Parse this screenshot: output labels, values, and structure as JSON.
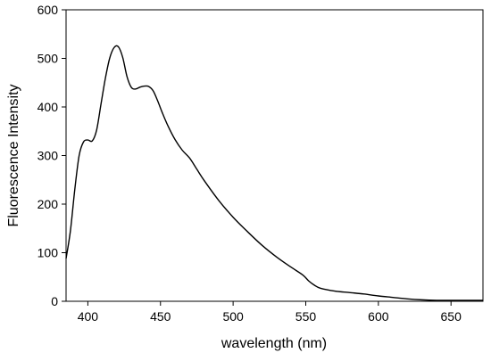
{
  "chart_data": {
    "type": "line",
    "title": "",
    "xlabel": "wavelength (nm)",
    "ylabel": "Fluorescence Intensity",
    "xlim": [
      385,
      672
    ],
    "ylim": [
      0,
      600
    ],
    "x_ticks": [
      400,
      450,
      500,
      550,
      600,
      650
    ],
    "y_ticks": [
      0,
      100,
      200,
      300,
      400,
      500,
      600
    ],
    "grid": false,
    "legend": "none",
    "series": [
      {
        "x": [
          385,
          388,
          391,
          394,
          397,
          400,
          403,
          406,
          409,
          412,
          415,
          418,
          421,
          424,
          427,
          430,
          433,
          436,
          439,
          442,
          445,
          448,
          451,
          455,
          460,
          465,
          470,
          475,
          480,
          490,
          500,
          510,
          520,
          530,
          540,
          548,
          552,
          556,
          560,
          570,
          580,
          590,
          600,
          610,
          620,
          630,
          640,
          650,
          660,
          672
        ],
        "values": [
          88,
          145,
          230,
          300,
          328,
          332,
          330,
          352,
          405,
          458,
          500,
          522,
          524,
          502,
          462,
          440,
          437,
          441,
          443,
          442,
          433,
          413,
          390,
          362,
          333,
          311,
          295,
          272,
          249,
          208,
          173,
          143,
          115,
          91,
          70,
          54,
          42,
          33,
          27,
          21,
          18,
          15,
          11,
          8,
          5,
          3,
          2,
          2,
          2,
          2
        ],
        "color": "#000000"
      }
    ]
  }
}
